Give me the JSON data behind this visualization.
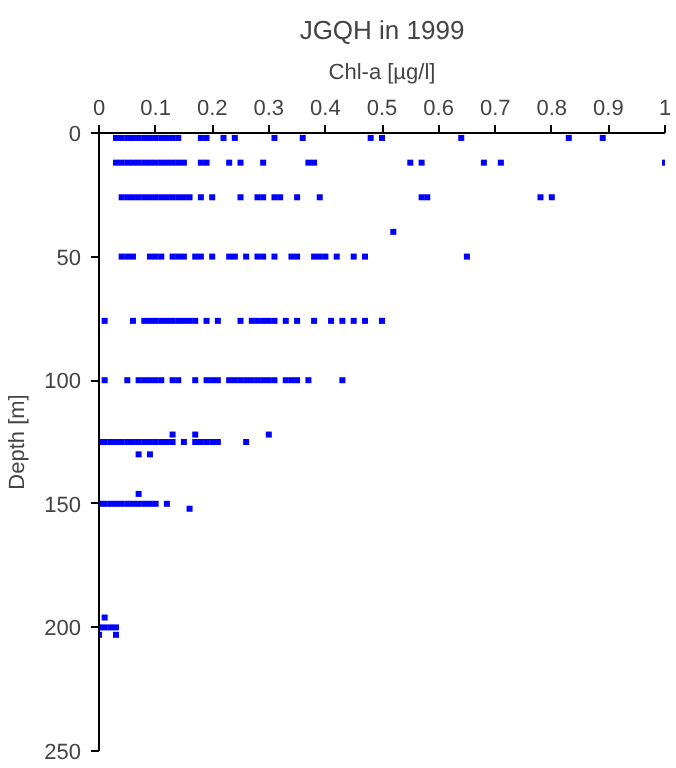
{
  "chart_data": {
    "type": "scatter",
    "title": "JGQH in 1999",
    "xlabel": "Chl-a [µg/l]",
    "ylabel": "Depth [m]",
    "xlim": [
      0,
      1
    ],
    "xticks": [
      0,
      0.1,
      0.2,
      0.3,
      0.4,
      0.5,
      0.6,
      0.7,
      0.8,
      0.9,
      1
    ],
    "ylim": [
      250,
      0
    ],
    "yticks": [
      0,
      50,
      100,
      150,
      200,
      250
    ],
    "grid": false,
    "marker": "square",
    "series": [
      {
        "color": "#0000ff",
        "x": [
          0.03,
          0.04,
          0.05,
          0.06,
          0.07,
          0.08,
          0.09,
          0.1,
          0.11,
          0.12,
          0.13,
          0.14,
          0.18,
          0.19,
          0.22,
          0.24,
          0.31,
          0.36,
          0.48,
          0.5,
          0.64,
          0.83,
          0.89,
          0.03,
          0.04,
          0.05,
          0.06,
          0.07,
          0.08,
          0.09,
          0.1,
          0.11,
          0.12,
          0.13,
          0.14,
          0.15,
          0.18,
          0.19,
          0.23,
          0.25,
          0.29,
          0.37,
          0.38,
          0.55,
          0.57,
          0.68,
          0.71,
          1,
          0.04,
          0.05,
          0.06,
          0.07,
          0.08,
          0.09,
          0.1,
          0.11,
          0.12,
          0.13,
          0.14,
          0.15,
          0.16,
          0.18,
          0.2,
          0.25,
          0.28,
          0.29,
          0.31,
          0.32,
          0.35,
          0.39,
          0.57,
          0.58,
          0.78,
          0.8,
          0.52,
          0.04,
          0.05,
          0.06,
          0.09,
          0.1,
          0.11,
          0.13,
          0.14,
          0.15,
          0.17,
          0.18,
          0.2,
          0.23,
          0.24,
          0.26,
          0.28,
          0.29,
          0.31,
          0.34,
          0.35,
          0.38,
          0.39,
          0.4,
          0.42,
          0.45,
          0.47,
          0.65,
          0.01,
          0.06,
          0.08,
          0.09,
          0.1,
          0.11,
          0.12,
          0.13,
          0.14,
          0.15,
          0.16,
          0.17,
          0.19,
          0.21,
          0.25,
          0.27,
          0.28,
          0.29,
          0.3,
          0.31,
          0.33,
          0.35,
          0.38,
          0.41,
          0.43,
          0.45,
          0.47,
          0.5,
          0.01,
          0.05,
          0.07,
          0.08,
          0.09,
          0.1,
          0.11,
          0.13,
          0.14,
          0.17,
          0.19,
          0.2,
          0.21,
          0.23,
          0.24,
          0.25,
          0.26,
          0.27,
          0.28,
          0.29,
          0.3,
          0.31,
          0.33,
          0.34,
          0.35,
          0.37,
          0.43,
          0,
          0.01,
          0.02,
          0.03,
          0.04,
          0.05,
          0.06,
          0.07,
          0.08,
          0.09,
          0.1,
          0.11,
          0.12,
          0.13,
          0.15,
          0.17,
          0.18,
          0.19,
          0.2,
          0.21,
          0.26,
          0.13,
          0.17,
          0.3,
          0.07,
          0.09,
          0,
          0.01,
          0.02,
          0.03,
          0.04,
          0.05,
          0.06,
          0.07,
          0.08,
          0.09,
          0.1,
          0.12,
          0.16,
          0.07,
          0,
          0.01,
          0.02,
          0.03,
          0.01,
          0,
          0.03
        ],
        "values": [
          2,
          2,
          2,
          2,
          2,
          2,
          2,
          2,
          2,
          2,
          2,
          2,
          2,
          2,
          2,
          2,
          2,
          2,
          2,
          2,
          2,
          2,
          2,
          12,
          12,
          12,
          12,
          12,
          12,
          12,
          12,
          12,
          12,
          12,
          12,
          12,
          12,
          12,
          12,
          12,
          12,
          12,
          12,
          12,
          12,
          12,
          12,
          12,
          26,
          26,
          26,
          26,
          26,
          26,
          26,
          26,
          26,
          26,
          26,
          26,
          26,
          26,
          26,
          26,
          26,
          26,
          26,
          26,
          26,
          26,
          26,
          26,
          26,
          26,
          40,
          50,
          50,
          50,
          50,
          50,
          50,
          50,
          50,
          50,
          50,
          50,
          50,
          50,
          50,
          50,
          50,
          50,
          50,
          50,
          50,
          50,
          50,
          50,
          50,
          50,
          50,
          50,
          76,
          76,
          76,
          76,
          76,
          76,
          76,
          76,
          76,
          76,
          76,
          76,
          76,
          76,
          76,
          76,
          76,
          76,
          76,
          76,
          76,
          76,
          76,
          76,
          76,
          76,
          76,
          76,
          100,
          100,
          100,
          100,
          100,
          100,
          100,
          100,
          100,
          100,
          100,
          100,
          100,
          100,
          100,
          100,
          100,
          100,
          100,
          100,
          100,
          100,
          100,
          100,
          100,
          100,
          100,
          125,
          125,
          125,
          125,
          125,
          125,
          125,
          125,
          125,
          125,
          125,
          125,
          125,
          125,
          125,
          125,
          125,
          125,
          125,
          125,
          125,
          122,
          122,
          122,
          130,
          130,
          150,
          150,
          150,
          150,
          150,
          150,
          150,
          150,
          150,
          150,
          150,
          150,
          152,
          146,
          200,
          200,
          200,
          200,
          196,
          203,
          203
        ]
      }
    ]
  }
}
